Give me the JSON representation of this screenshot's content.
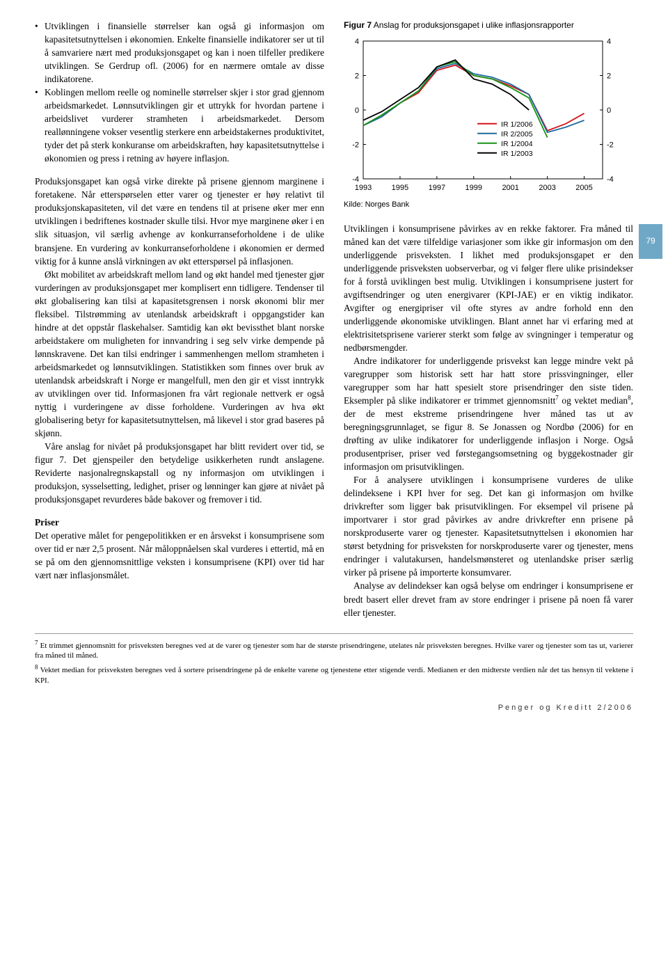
{
  "left": {
    "bullet1": "Utviklingen i finansielle størrelser kan også gi informasjon om kapasitetsutnyttelsen i økonomien. Enkelte finansielle indikatorer ser ut til å samvariere nært med produksjonsgapet og kan i noen tilfeller predikere utviklingen. Se Gerdrup ofl. (2006) for en nærmere omtale av disse indikatorene.",
    "bullet2": "Koblingen mellom reelle og nominelle størrelser skjer i stor grad gjennom arbeidsmarkedet. Lønnsutviklingen gir et uttrykk for hvordan partene i arbeidslivet vurderer stramheten i arbeidsmarkedet. Dersom reallønningene vokser vesentlig sterkere enn arbeidstakernes produktivitet, tyder det på sterk konkuranse om arbeidskraften, høy kapasitetsutnyttelse i økonomien og press i retning av høyere inflasjon.",
    "p1": "Produksjonsgapet kan også virke direkte på prisene gjennom marginene i foretakene. Når etterspørselen etter varer og tjenester er høy relativt til produksjonskapasiteten, vil det være en tendens til at prisene øker mer enn utviklingen i bedriftenes kostnader skulle tilsi. Hvor mye marginene øker i en slik situasjon, vil særlig avhenge av konkurranseforholdene i de ulike bransjene. En vurdering av konkurranseforholdene i økonomien er dermed viktig for å kunne anslå virkningen av økt etterspørsel på inflasjonen.",
    "p2": "Økt mobilitet av arbeidskraft mellom land og økt handel med tjenester gjør vurderingen av produksjonsgapet mer komplisert enn tidligere. Tendenser til økt globalisering kan tilsi at kapasitetsgrensen i norsk økonomi blir mer fleksibel. Tilstrømming av utenlandsk arbeidskraft i oppgangstider kan hindre at det oppstår flaskehalser. Samtidig kan økt bevissthet blant norske arbeidstakere om muligheten for innvandring i seg selv virke dempende på lønnskravene. Det kan tilsi endringer i sammenhengen mellom stramheten i arbeidsmarkedet og lønnsutviklingen. Statistikken som finnes over bruk av utenlandsk arbeidskraft i Norge er mangelfull, men den gir et visst inntrykk av utviklingen over tid. Informasjonen fra vårt regionale nettverk er også nyttig i vurderingene av disse forholdene. Vurderingen av hva økt globalisering betyr for kapasitetsutnyttelsen, må likevel i stor grad baseres på skjønn.",
    "p3": "Våre anslag for nivået på produksjonsgapet har blitt revidert over tid, se figur 7. Det gjenspeiler den betydelige usikkerheten rundt anslagene. Reviderte nasjonalregnskapstall og ny informasjon om utviklingen i produksjon, sysselsetting, ledighet, priser og lønninger kan gjøre at nivået på produksjonsgapet revurderes både bakover og fremover i tid.",
    "priser_title": "Priser",
    "priser_p": "Det operative målet for pengepolitikken er en årsvekst i konsumprisene som over tid er nær 2,5 prosent. Når måloppnåelsen skal vurderes i ettertid, må en se på om den gjennomsnittlige veksten i konsumprisene (KPI) over tid har vært nær inflasjonsmålet."
  },
  "chart": {
    "title_prefix": "Figur 7",
    "title_text": " Anslag for produksjonsgapet i ulike inflasjonsrapporter",
    "source": "Kilde: Norges Bank",
    "ylim": [
      -4,
      4
    ],
    "yticks": [
      -4,
      -2,
      0,
      2,
      4
    ],
    "xticks": [
      1993,
      1995,
      1997,
      1999,
      2001,
      2003,
      2005
    ],
    "bg": "#ffffff",
    "axis_color": "#000000",
    "legend": [
      {
        "label": "IR 1/2006",
        "color": "#d4141c"
      },
      {
        "label": "IR 2/2005",
        "color": "#1e6a9e"
      },
      {
        "label": "IR 1/2004",
        "color": "#149414"
      },
      {
        "label": "IR 1/2003",
        "color": "#000000"
      }
    ],
    "series": {
      "IR12006": {
        "color": "#d4141c",
        "points": [
          [
            1993,
            -0.9
          ],
          [
            1994,
            -0.4
          ],
          [
            1995,
            0.4
          ],
          [
            1996,
            1.0
          ],
          [
            1997,
            2.3
          ],
          [
            1998,
            2.6
          ],
          [
            1999,
            2.0
          ],
          [
            2000,
            1.8
          ],
          [
            2001,
            1.4
          ],
          [
            2002,
            0.9
          ],
          [
            2003,
            -1.2
          ],
          [
            2004,
            -0.8
          ],
          [
            2005,
            -0.2
          ]
        ]
      },
      "IR22005": {
        "color": "#1e6a9e",
        "points": [
          [
            1993,
            -0.9
          ],
          [
            1994,
            -0.4
          ],
          [
            1995,
            0.4
          ],
          [
            1996,
            1.1
          ],
          [
            1997,
            2.4
          ],
          [
            1998,
            2.7
          ],
          [
            1999,
            2.1
          ],
          [
            2000,
            1.9
          ],
          [
            2001,
            1.5
          ],
          [
            2002,
            0.9
          ],
          [
            2003,
            -1.3
          ],
          [
            2004,
            -1.0
          ],
          [
            2005,
            -0.6
          ]
        ]
      },
      "IR12004": {
        "color": "#149414",
        "points": [
          [
            1993,
            -0.9
          ],
          [
            1994,
            -0.3
          ],
          [
            1995,
            0.4
          ],
          [
            1996,
            1.1
          ],
          [
            1997,
            2.5
          ],
          [
            1998,
            2.8
          ],
          [
            1999,
            2.0
          ],
          [
            2000,
            1.8
          ],
          [
            2001,
            1.3
          ],
          [
            2002,
            0.7
          ],
          [
            2003,
            -1.6
          ]
        ]
      },
      "IR12003": {
        "color": "#000000",
        "points": [
          [
            1993,
            -0.6
          ],
          [
            1994,
            -0.1
          ],
          [
            1995,
            0.6
          ],
          [
            1996,
            1.3
          ],
          [
            1997,
            2.5
          ],
          [
            1998,
            2.9
          ],
          [
            1999,
            1.8
          ],
          [
            2000,
            1.5
          ],
          [
            2001,
            0.9
          ],
          [
            2002,
            0.0
          ]
        ]
      }
    }
  },
  "right": {
    "p1a": "Utviklingen i konsumprisene påvirkes av en rekke faktorer. Fra måned til måned kan det være tilfeldige variasjoner som ikke gir informasjon om den underliggende prisveksten. I likhet med produksjonsgapet er den underliggende prisveksten uobserverbar, og vi følger flere ulike prisindekser for å forstå uviklingen best mulig. Utviklingen i konsumprisene justert for avgiftsendringer og uten energivarer (KPI-JAE) er en viktig indikator. Avgifter og energipriser vil ofte styres av andre forhold enn den underliggende økonomiske utviklingen. Blant annet har vi erfaring med at elektrisitetsprisene varierer sterkt som følge av svingninger i temperatur og nedbørsmengder.",
    "p1b_a": "Andre indikatorer for underliggende prisvekst kan legge mindre vekt på varegrupper som historisk sett har hatt store prissvingninger, eller varegrupper som har hatt spesielt store prisendringer den siste tiden. Eksempler på slike indikatorer er trimmet gjennomsnitt",
    "p1b_b": " og vektet median",
    "p1b_c": ", der de mest ekstreme prisendringene hver måned tas ut av beregningsgrunnlaget, se figur 8. Se Jonassen og Nordbø (2006) for en drøfting av ulike indikatorer for underliggende inflasjon i Norge. Også produsentpriser, priser ved førstegangsomsetning og byggekostnader gir informasjon om prisutviklingen.",
    "p2": "For å analysere utviklingen i konsumprisene vurderes de ulike delindeksene i KPI hver for seg. Det kan gi informasjon om hvilke drivkrefter som ligger bak prisutviklingen. For eksempel vil prisene på importvarer i stor grad påvirkes av andre drivkrefter enn prisene på norskproduserte varer og tjenester. Kapasitetsutnyttelsen i økonomien har størst betydning for prisveksten for norskproduserte varer og tjenester, mens endringer i valutakursen, handelsmønsteret og utenlandske priser særlig virker på prisene på importerte konsumvarer.",
    "p3": "Analyse av delindekser kan også belyse om endringer i konsumprisene er bredt basert eller drevet fram av store endringer i prisene på noen få varer eller tjenester."
  },
  "footnotes": {
    "fn7": " Et trimmet gjennomsnitt for prisveksten beregnes ved at de varer og tjenester som har de største prisendringene, utelates når prisveksten beregnes. Hvilke varer og tjenester som tas ut, varierer fra måned til måned.",
    "fn8": " Vektet median for prisveksten beregnes ved å sortere prisendringene på de enkelte varene og tjenestene etter stigende verdi. Medianen er den midterste verdien når det tas hensyn til vektene i KPI."
  },
  "page_number": "79",
  "footer": "Penger og Kreditt 2/2006"
}
